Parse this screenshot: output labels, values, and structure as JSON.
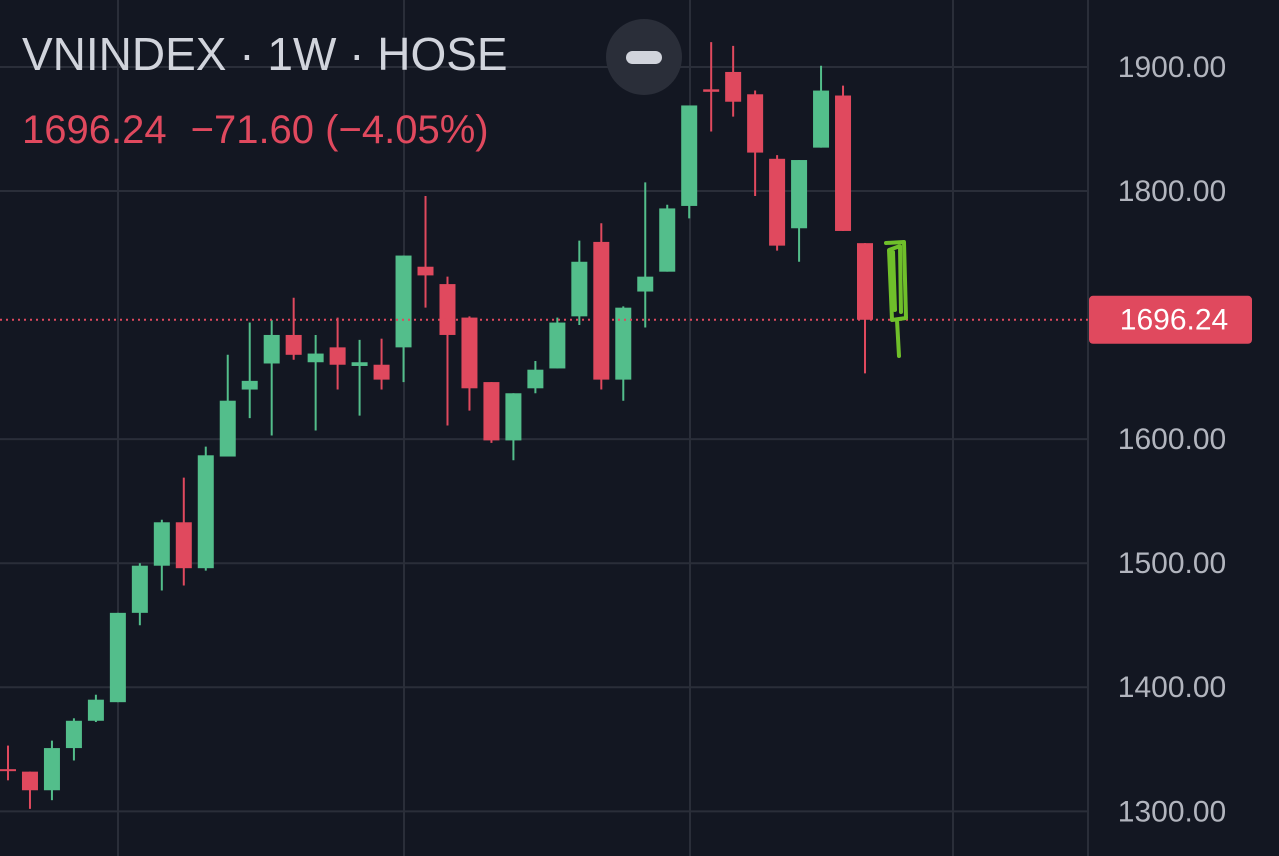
{
  "header": {
    "title": "VNINDEX · 1W · HOSE",
    "price": "1696.24",
    "change": "−71.60 (−4.05%)"
  },
  "chart_data": {
    "type": "candlestick",
    "up_color": "#53be8b",
    "down_color": "#e0495e",
    "grid": true,
    "ylim": [
      1264,
      1954
    ],
    "yticks": [
      {
        "value": 1300,
        "label": "1300.00"
      },
      {
        "value": 1400,
        "label": "1400.00"
      },
      {
        "value": 1500,
        "label": "1500.00"
      },
      {
        "value": 1600,
        "label": "1600.00"
      },
      {
        "value": 1800,
        "label": "1800.00"
      },
      {
        "value": 1900,
        "label": "1900.00"
      }
    ],
    "open": [
      1334,
      1332,
      1317,
      1351,
      1373,
      1388,
      1460,
      1498,
      1533,
      1496,
      1586,
      1640,
      1661,
      1684,
      1662,
      1674,
      1659,
      1660,
      1674,
      1739,
      1725,
      1698,
      1646,
      1599,
      1641,
      1657,
      1699,
      1759,
      1648,
      1719,
      1735,
      1788,
      1882,
      1896,
      1878,
      1826,
      1770,
      1835,
      1877,
      1758
    ],
    "high": [
      1353,
      1332,
      1357,
      1375,
      1394,
      1460,
      1500,
      1535,
      1569,
      1594,
      1668,
      1694,
      1696,
      1714,
      1684,
      1698,
      1680,
      1681,
      1748,
      1796,
      1731,
      1699,
      1646,
      1637,
      1663,
      1698,
      1760,
      1774,
      1707,
      1807,
      1789,
      1869,
      1920,
      1917,
      1881,
      1829,
      1825,
      1901,
      1885,
      1758
    ],
    "low": [
      1325,
      1302,
      1309,
      1341,
      1372,
      1388,
      1450,
      1478,
      1482,
      1494,
      1586,
      1617,
      1603,
      1664,
      1607,
      1640,
      1619,
      1640,
      1646,
      1706,
      1611,
      1623,
      1597,
      1583,
      1637,
      1657,
      1692,
      1640,
      1631,
      1690,
      1735,
      1778,
      1848,
      1860,
      1796,
      1752,
      1743,
      1835,
      1767.84,
      1653
    ],
    "close": [
      1333,
      1317,
      1351,
      1373,
      1390,
      1460,
      1498,
      1533,
      1496,
      1587,
      1631,
      1647,
      1684,
      1668,
      1669,
      1660,
      1662,
      1648,
      1748,
      1732,
      1684,
      1641,
      1599,
      1637,
      1656,
      1694,
      1743,
      1648,
      1706,
      1731,
      1786,
      1869,
      1880,
      1872,
      1831,
      1756,
      1825,
      1881,
      1767.84,
      1696.24
    ]
  }
}
